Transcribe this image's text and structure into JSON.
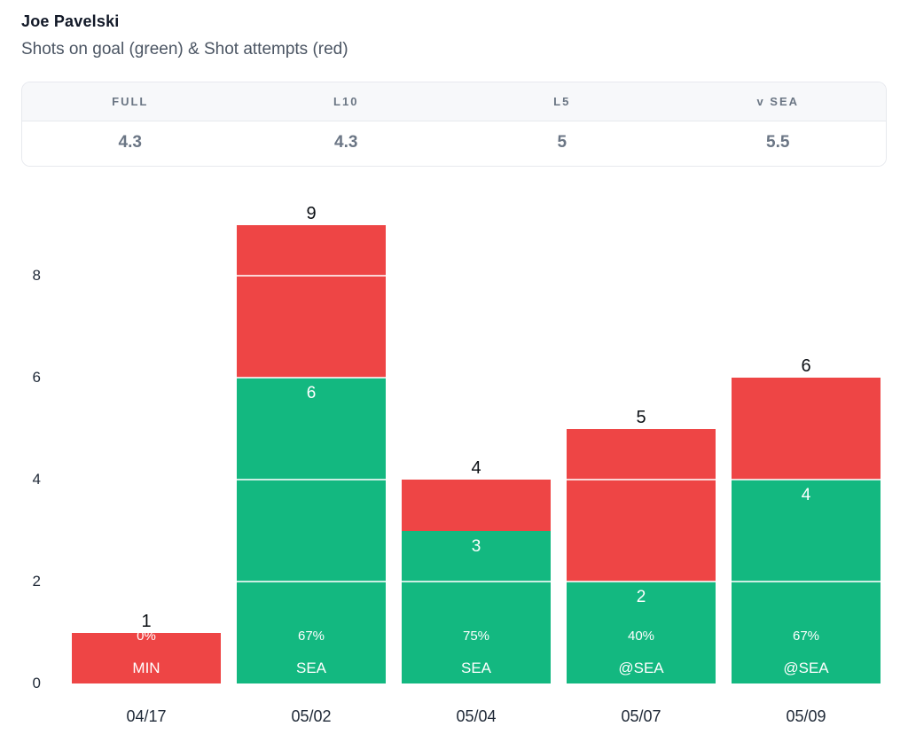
{
  "header": {
    "title": "Joe Pavelski",
    "subtitle": "Shots on goal (green) & Shot attempts (red)"
  },
  "stats": {
    "columns": [
      "FULL",
      "L10",
      "L5",
      "v SEA"
    ],
    "values": [
      "4.3",
      "4.3",
      "5",
      "5.5"
    ]
  },
  "chart_data": {
    "type": "bar",
    "stacked": true,
    "title": "Shots on goal (green) & Shot attempts (red)",
    "categories": [
      "04/17",
      "05/02",
      "05/04",
      "05/07",
      "05/09"
    ],
    "series": [
      {
        "name": "Shots on goal",
        "color": "#13b880",
        "values": [
          0,
          6,
          3,
          2,
          4
        ]
      },
      {
        "name": "Shot attempts (total)",
        "color": "#ee4545",
        "values": [
          1,
          9,
          4,
          5,
          6
        ]
      }
    ],
    "bars": [
      {
        "date": "04/17",
        "team": "MIN",
        "sog": 0,
        "attempts": 1,
        "pct": "0%"
      },
      {
        "date": "05/02",
        "team": "SEA",
        "sog": 6,
        "attempts": 9,
        "pct": "67%"
      },
      {
        "date": "05/04",
        "team": "SEA",
        "sog": 3,
        "attempts": 4,
        "pct": "75%"
      },
      {
        "date": "05/07",
        "team": "@SEA",
        "sog": 2,
        "attempts": 5,
        "pct": "40%"
      },
      {
        "date": "05/09",
        "team": "@SEA",
        "sog": 4,
        "attempts": 6,
        "pct": "67%"
      }
    ],
    "yticks": [
      0,
      2,
      4,
      6,
      8
    ],
    "ylim": [
      0,
      9
    ],
    "xlabel": "",
    "ylabel": "",
    "legend_position": "none",
    "grid": "white-lines-over-bars",
    "colors": {
      "green": "#13b880",
      "red": "#ee4545",
      "bar_label": "#ffffff",
      "total_label": "#0b0f14"
    }
  }
}
